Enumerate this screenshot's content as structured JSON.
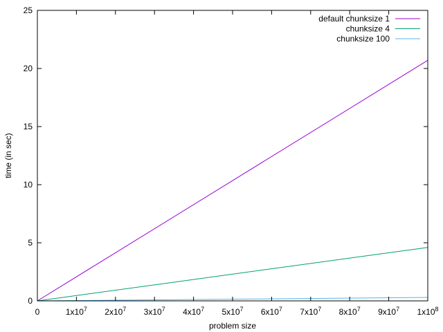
{
  "chart_data": {
    "type": "line",
    "xlabel": "problem size",
    "ylabel": "time (in sec)",
    "xlim": [
      0,
      100000000
    ],
    "ylim": [
      0,
      25
    ],
    "grid": false,
    "legend_position": "top-right",
    "x_ticks": [
      {
        "value": 0,
        "base": "0",
        "exp": ""
      },
      {
        "value": 10000000,
        "base": "1x10",
        "exp": "7"
      },
      {
        "value": 20000000,
        "base": "2x10",
        "exp": "7"
      },
      {
        "value": 30000000,
        "base": "3x10",
        "exp": "7"
      },
      {
        "value": 40000000,
        "base": "4x10",
        "exp": "7"
      },
      {
        "value": 50000000,
        "base": "5x10",
        "exp": "7"
      },
      {
        "value": 60000000,
        "base": "6x10",
        "exp": "7"
      },
      {
        "value": 70000000,
        "base": "7x10",
        "exp": "7"
      },
      {
        "value": 80000000,
        "base": "8x10",
        "exp": "7"
      },
      {
        "value": 90000000,
        "base": "9x10",
        "exp": "7"
      },
      {
        "value": 100000000,
        "base": "1x10",
        "exp": "8"
      }
    ],
    "y_ticks": [
      {
        "value": 0,
        "label": "0"
      },
      {
        "value": 5,
        "label": "5"
      },
      {
        "value": 10,
        "label": "10"
      },
      {
        "value": 15,
        "label": "15"
      },
      {
        "value": 20,
        "label": "20"
      },
      {
        "value": 25,
        "label": "25"
      }
    ],
    "series": [
      {
        "name": "default chunksize 1",
        "color": "#9400d3",
        "x": [
          0,
          100000000
        ],
        "y": [
          0,
          20.7
        ]
      },
      {
        "name": "chunksize 4",
        "color": "#009e73",
        "x": [
          0,
          100000000
        ],
        "y": [
          0,
          4.6
        ]
      },
      {
        "name": "chunksize 100",
        "color": "#56b4e9",
        "x": [
          0,
          100000000
        ],
        "y": [
          0,
          0.3
        ]
      }
    ]
  }
}
